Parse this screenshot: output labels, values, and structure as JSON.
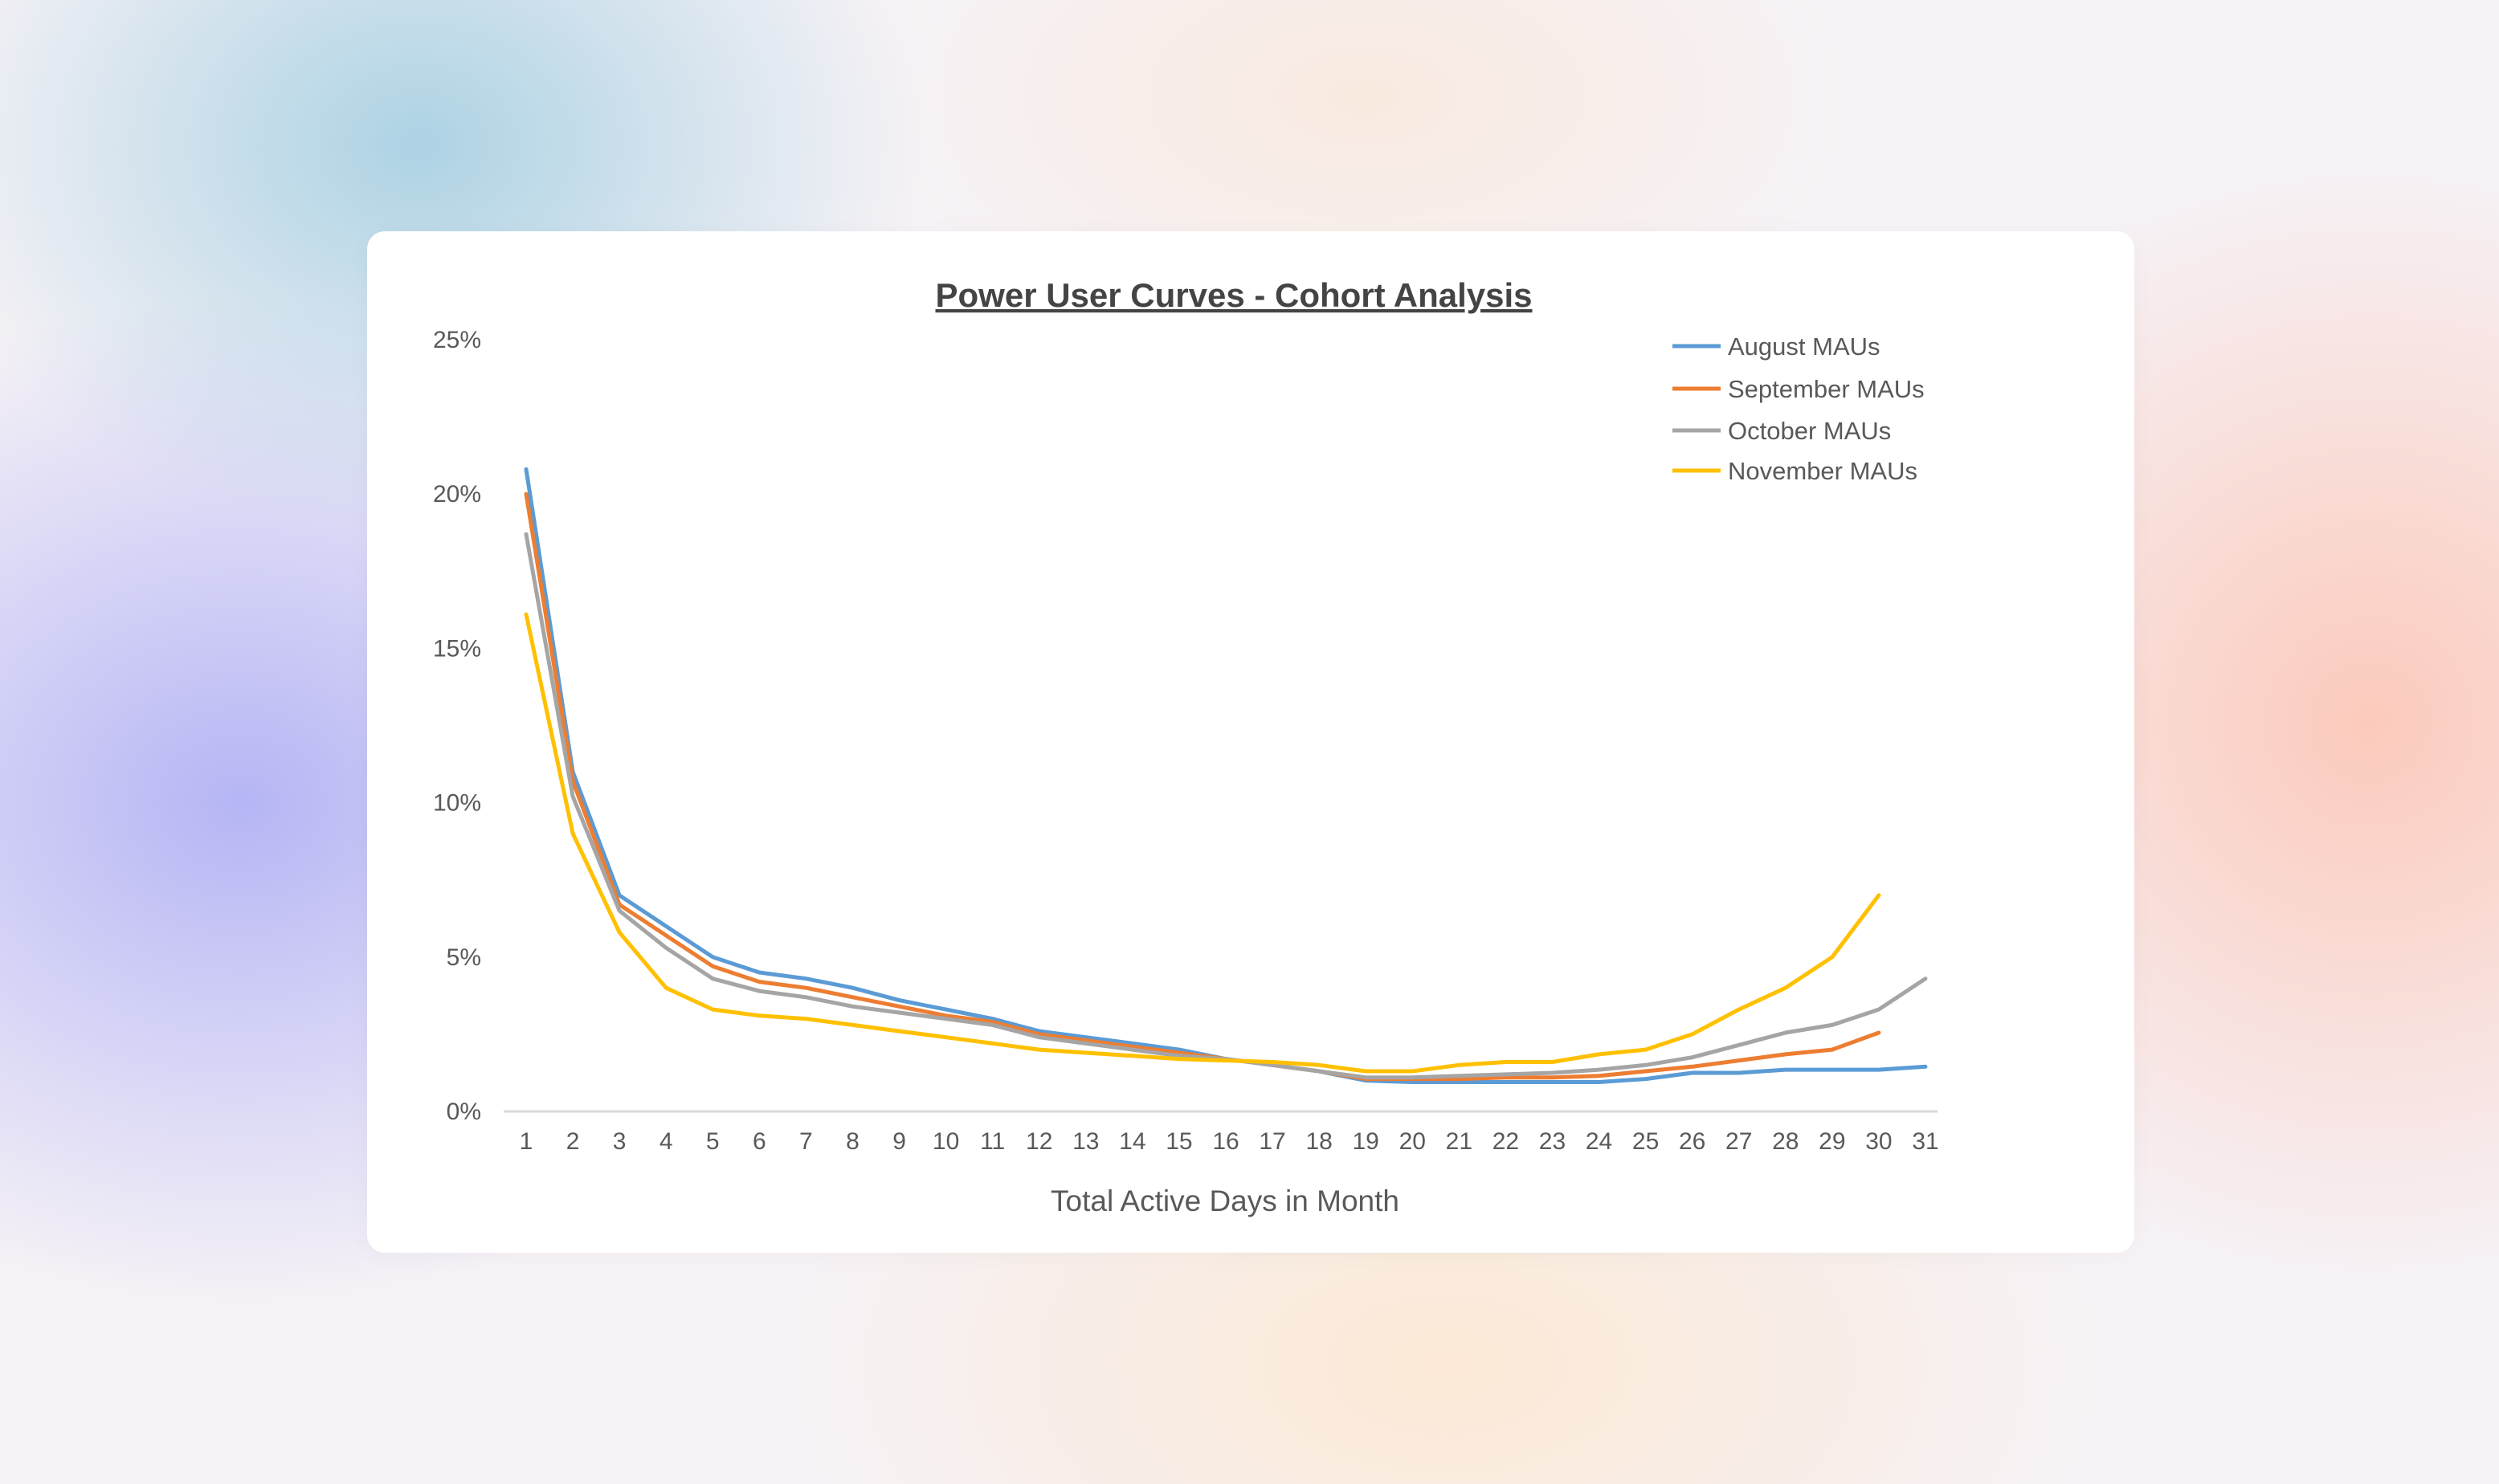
{
  "chart_data": {
    "type": "line",
    "title": "Power User Curves - Cohort Analysis",
    "xlabel": "Total Active Days in Month",
    "ylabel": "",
    "x": [
      1,
      2,
      3,
      4,
      5,
      6,
      7,
      8,
      9,
      10,
      11,
      12,
      13,
      14,
      15,
      16,
      17,
      18,
      19,
      20,
      21,
      22,
      23,
      24,
      25,
      26,
      27,
      28,
      29,
      30,
      31
    ],
    "ylim": [
      0,
      25
    ],
    "yticks": [
      "0%",
      "5%",
      "10%",
      "15%",
      "20%",
      "25%"
    ],
    "ytick_values": [
      0,
      5,
      10,
      15,
      20,
      25
    ],
    "grid": false,
    "legend_position": "top-right",
    "series": [
      {
        "name": "August MAUs",
        "color": "#5B9BD5",
        "values": [
          20.8,
          11.0,
          7.0,
          6.0,
          5.0,
          4.5,
          4.3,
          4.0,
          3.6,
          3.3,
          3.0,
          2.6,
          2.4,
          2.2,
          2.0,
          1.7,
          1.5,
          1.3,
          1.0,
          0.95,
          0.95,
          0.95,
          0.95,
          0.95,
          1.05,
          1.25,
          1.25,
          1.35,
          1.35,
          1.35,
          1.45
        ]
      },
      {
        "name": "September MAUs",
        "color": "#ED7D31",
        "values": [
          20.0,
          10.7,
          6.7,
          5.7,
          4.7,
          4.2,
          4.0,
          3.7,
          3.4,
          3.1,
          2.9,
          2.5,
          2.3,
          2.1,
          1.9,
          1.7,
          1.5,
          1.3,
          1.05,
          1.05,
          1.05,
          1.1,
          1.1,
          1.15,
          1.3,
          1.45,
          1.65,
          1.85,
          2.0,
          2.55,
          null
        ]
      },
      {
        "name": "October MAUs",
        "color": "#A5A5A5",
        "values": [
          18.7,
          10.2,
          6.5,
          5.3,
          4.3,
          3.9,
          3.7,
          3.4,
          3.2,
          3.0,
          2.8,
          2.4,
          2.2,
          2.0,
          1.8,
          1.7,
          1.5,
          1.3,
          1.1,
          1.1,
          1.15,
          1.2,
          1.25,
          1.35,
          1.5,
          1.75,
          2.15,
          2.55,
          2.8,
          3.3,
          4.3
        ]
      },
      {
        "name": "November MAUs",
        "color": "#FFC000",
        "values": [
          16.1,
          9.0,
          5.8,
          4.0,
          3.3,
          3.1,
          3.0,
          2.8,
          2.6,
          2.4,
          2.2,
          2.0,
          1.9,
          1.8,
          1.7,
          1.65,
          1.6,
          1.5,
          1.3,
          1.3,
          1.5,
          1.6,
          1.6,
          1.85,
          2.0,
          2.5,
          3.3,
          4.0,
          5.0,
          7.0,
          null
        ]
      }
    ]
  }
}
